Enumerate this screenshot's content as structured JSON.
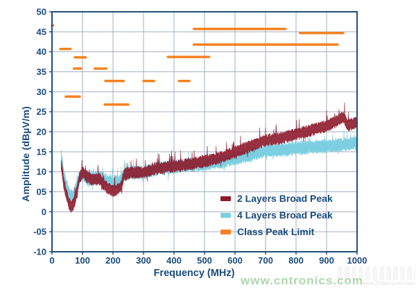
{
  "colors": {
    "axis": "#1F4E79",
    "grid": "#A3AEC2",
    "text": "#1A4B7C",
    "red": "#8E1B2C",
    "cyan": "#7CCFE0",
    "orange": "#F5821F",
    "watermark_green": "#AFD7AE"
  },
  "watermark": {
    "main": "www.cntronics.com",
    "faint": "www.21dianyuan.com"
  },
  "chart_data": {
    "type": "line",
    "title": "",
    "xlabel": "Frequency (MHz)",
    "ylabel": "Amplitude (dBµV/m)",
    "xlim": [
      0,
      1000
    ],
    "ylim": [
      -10,
      50
    ],
    "grid": true,
    "legend_position": "inside-lower-right",
    "x_ticks": [
      {
        "v": 0,
        "label": "0"
      },
      {
        "v": 100,
        "label": "100"
      },
      {
        "v": 200,
        "label": "200"
      },
      {
        "v": 300,
        "label": "300"
      },
      {
        "v": 400,
        "label": "400"
      },
      {
        "v": 500,
        "label": "500"
      },
      {
        "v": 600,
        "label": "600"
      },
      {
        "v": 700,
        "label": "700"
      },
      {
        "v": 800,
        "label": "800"
      },
      {
        "v": 900,
        "label": "900"
      },
      {
        "v": 1000,
        "label": "1000"
      }
    ],
    "y_ticks": [
      {
        "v": 50,
        "label": "50"
      },
      {
        "v": 45,
        "label": "45"
      },
      {
        "v": 40,
        "label": "40"
      },
      {
        "v": 35,
        "label": "35"
      },
      {
        "v": 30,
        "label": "30"
      },
      {
        "v": 25,
        "label": "25"
      },
      {
        "v": 20,
        "label": "20"
      },
      {
        "v": 15,
        "label": "15"
      },
      {
        "v": 10,
        "label": "10"
      },
      {
        "v": 5,
        "label": "05"
      },
      {
        "v": 0,
        "label": "0"
      },
      {
        "v": -5,
        "label": "-05"
      },
      {
        "v": -10,
        "label": "-10"
      }
    ],
    "legend": [
      {
        "label": "2 Layers Broad Peak",
        "color": "#8E1B2C"
      },
      {
        "label": "4 Layers Broad Peak",
        "color": "#7CCFE0"
      },
      {
        "label": "Class Peak Limit",
        "color": "#F5821F"
      }
    ],
    "series": [
      {
        "name": "2 Layers Broad Peak",
        "color": "#8E1B2C",
        "band_halfwidth": 1.6,
        "spike_prob": 0.07,
        "spike_amp": 2.8,
        "opacity": 0.9,
        "points": [
          [
            30,
            12
          ],
          [
            38,
            7.5
          ],
          [
            45,
            5
          ],
          [
            55,
            2.2
          ],
          [
            62,
            1.2
          ],
          [
            70,
            1.8
          ],
          [
            80,
            4.5
          ],
          [
            90,
            8.5
          ],
          [
            100,
            9.8
          ],
          [
            110,
            9.2
          ],
          [
            125,
            8.2
          ],
          [
            140,
            8.0
          ],
          [
            155,
            8.3
          ],
          [
            170,
            6.8
          ],
          [
            185,
            5.8
          ],
          [
            200,
            5.2
          ],
          [
            215,
            5.5
          ],
          [
            228,
            6.5
          ],
          [
            235,
            9.3
          ],
          [
            260,
            9.8
          ],
          [
            300,
            9.9
          ],
          [
            350,
            10.9
          ],
          [
            400,
            11.4
          ],
          [
            450,
            11.9
          ],
          [
            500,
            12.6
          ],
          [
            550,
            13.5
          ],
          [
            600,
            14.9
          ],
          [
            650,
            16.4
          ],
          [
            700,
            17.9
          ],
          [
            750,
            18.4
          ],
          [
            800,
            19.4
          ],
          [
            850,
            20.4
          ],
          [
            900,
            21.4
          ],
          [
            940,
            23.0
          ],
          [
            955,
            23.8
          ],
          [
            970,
            21.6
          ],
          [
            1000,
            22.4
          ]
        ]
      },
      {
        "name": "4 Layers Broad Peak",
        "color": "#7CCFE0",
        "band_halfwidth": 1.8,
        "spike_prob": 0.05,
        "spike_amp": 2.2,
        "opacity": 1,
        "points": [
          [
            30,
            14
          ],
          [
            38,
            9.5
          ],
          [
            45,
            7
          ],
          [
            55,
            4.8
          ],
          [
            62,
            3.8
          ],
          [
            70,
            4.2
          ],
          [
            80,
            6
          ],
          [
            90,
            8.8
          ],
          [
            100,
            9.3
          ],
          [
            115,
            8.2
          ],
          [
            130,
            8.3
          ],
          [
            150,
            8.8
          ],
          [
            165,
            8.3
          ],
          [
            180,
            7.8
          ],
          [
            200,
            7.2
          ],
          [
            215,
            7.3
          ],
          [
            228,
            7.8
          ],
          [
            235,
            9.3
          ],
          [
            260,
            9.8
          ],
          [
            300,
            9.8
          ],
          [
            350,
            10.8
          ],
          [
            400,
            11.2
          ],
          [
            450,
            11.7
          ],
          [
            500,
            12.0
          ],
          [
            550,
            12.5
          ],
          [
            600,
            13.3
          ],
          [
            650,
            14.3
          ],
          [
            700,
            15.2
          ],
          [
            750,
            15.4
          ],
          [
            800,
            15.9
          ],
          [
            850,
            16.2
          ],
          [
            900,
            16.4
          ],
          [
            950,
            16.8
          ],
          [
            1000,
            17.3
          ]
        ]
      }
    ],
    "limit": {
      "name": "Class Peak Limit",
      "color": "#F5821F",
      "segments": [
        [
          0,
          4,
          46.6
        ],
        [
          27,
          61,
          40.7
        ],
        [
          75,
          110,
          38.6
        ],
        [
          72,
          95,
          35.8
        ],
        [
          140,
          178,
          35.8
        ],
        [
          45,
          91,
          28.8
        ],
        [
          175,
          235,
          32.7
        ],
        [
          173,
          250,
          26.8
        ],
        [
          300,
          334,
          32.7
        ],
        [
          416,
          450,
          32.7
        ],
        [
          380,
          515,
          38.7
        ],
        [
          465,
          765,
          45.7
        ],
        [
          813,
          954,
          44.7
        ],
        [
          465,
          936,
          41.8
        ]
      ]
    }
  }
}
